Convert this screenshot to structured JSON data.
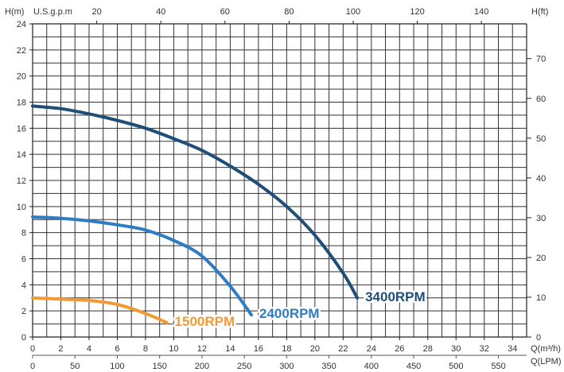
{
  "chart_data": {
    "type": "line",
    "title": "",
    "left_axis": {
      "label": "H(m)",
      "min": 0,
      "max": 24,
      "ticks": [
        0,
        2,
        4,
        6,
        8,
        10,
        12,
        14,
        16,
        18,
        20,
        22,
        24
      ]
    },
    "right_axis": {
      "label": "H(ft)",
      "ticks": [
        0,
        10,
        20,
        30,
        40,
        50,
        60,
        70
      ]
    },
    "top_axis": {
      "label": "U.S.g.p.m",
      "ticks": [
        20,
        40,
        60,
        80,
        100,
        120,
        140
      ]
    },
    "bottom_axis": {
      "label": "Q(m³/h)",
      "min": 0,
      "max": 35,
      "ticks": [
        0,
        2,
        4,
        6,
        8,
        10,
        12,
        14,
        16,
        18,
        20,
        22,
        24,
        26,
        28,
        30,
        32,
        34
      ]
    },
    "bottom_axis_2": {
      "label": "Q(LPM)",
      "ticks": [
        0,
        50,
        100,
        150,
        200,
        250,
        300,
        350,
        400,
        450,
        500,
        550
      ]
    },
    "grid": true,
    "series": [
      {
        "name": "3400RPM",
        "color": "#1f4e79",
        "points": [
          [
            0,
            17.7
          ],
          [
            2,
            17.5
          ],
          [
            4,
            17.1
          ],
          [
            6,
            16.6
          ],
          [
            8,
            16.0
          ],
          [
            10,
            15.2
          ],
          [
            12,
            14.3
          ],
          [
            14,
            13.1
          ],
          [
            16,
            11.7
          ],
          [
            18,
            10.0
          ],
          [
            20,
            7.8
          ],
          [
            22,
            4.9
          ],
          [
            23,
            3.0
          ]
        ]
      },
      {
        "name": "2400RPM",
        "color": "#2e7dc4",
        "points": [
          [
            0,
            9.2
          ],
          [
            2,
            9.1
          ],
          [
            4,
            8.9
          ],
          [
            6,
            8.6
          ],
          [
            8,
            8.2
          ],
          [
            10,
            7.4
          ],
          [
            12,
            6.2
          ],
          [
            14,
            3.9
          ],
          [
            15.5,
            1.7
          ]
        ]
      },
      {
        "name": "1500RPM",
        "color": "#f39a36",
        "points": [
          [
            0,
            3.0
          ],
          [
            2,
            2.9
          ],
          [
            4,
            2.8
          ],
          [
            6,
            2.5
          ],
          [
            8,
            1.8
          ],
          [
            9.5,
            1.1
          ]
        ]
      }
    ]
  }
}
